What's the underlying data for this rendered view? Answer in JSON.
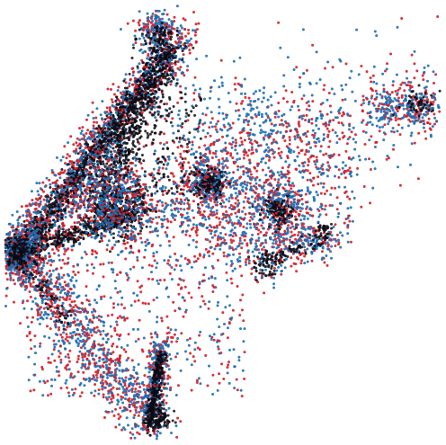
{
  "chart_data": {
    "type": "scatter",
    "title": "",
    "xlabel": "",
    "ylabel": "",
    "axes_visible": false,
    "grid": false,
    "legend": "none",
    "xlim": [
      0,
      1
    ],
    "ylim": [
      0,
      1
    ],
    "series": [
      {
        "color": "#1f6fb4",
        "seed": 11,
        "structures": [
          {
            "kind": "line",
            "from": [
              0.03,
              0.43
            ],
            "to": [
              0.4,
              0.93
            ],
            "n": 700,
            "spread": 0.025
          },
          {
            "kind": "line",
            "from": [
              0.03,
              0.43
            ],
            "to": [
              0.34,
              0.03
            ],
            "n": 450,
            "spread": 0.03
          },
          {
            "kind": "line",
            "from": [
              0.33,
              0.03
            ],
            "to": [
              0.36,
              0.22
            ],
            "n": 200,
            "spread": 0.012
          },
          {
            "kind": "line",
            "from": [
              0.2,
              0.51
            ],
            "to": [
              0.72,
              0.63
            ],
            "n": 350,
            "spread": 0.06
          },
          {
            "kind": "line",
            "from": [
              0.4,
              0.7
            ],
            "to": [
              0.97,
              0.78
            ],
            "n": 250,
            "spread": 0.08
          },
          {
            "kind": "line",
            "from": [
              0.5,
              0.45
            ],
            "to": [
              0.74,
              0.48
            ],
            "n": 120,
            "spread": 0.03
          },
          {
            "kind": "line",
            "from": [
              0.58,
              0.39
            ],
            "to": [
              0.75,
              0.47
            ],
            "n": 90,
            "spread": 0.02
          },
          {
            "kind": "blob",
            "center": [
              0.03,
              0.43
            ],
            "radius": 0.03,
            "n": 220
          },
          {
            "kind": "blob",
            "center": [
              0.63,
              0.54
            ],
            "radius": 0.028,
            "n": 120
          },
          {
            "kind": "blob",
            "center": [
              0.47,
              0.59
            ],
            "radius": 0.025,
            "n": 120
          },
          {
            "kind": "blob",
            "center": [
              0.95,
              0.77
            ],
            "radius": 0.03,
            "n": 100
          },
          {
            "kind": "blob",
            "center": [
              0.87,
              0.77
            ],
            "radius": 0.025,
            "n": 60
          },
          {
            "kind": "blob",
            "center": [
              0.58,
              0.76
            ],
            "radius": 0.025,
            "n": 40
          },
          {
            "kind": "blob",
            "center": [
              0.35,
              0.94
            ],
            "radius": 0.025,
            "n": 120
          },
          {
            "kind": "blob",
            "center": [
              0.25,
              0.56
            ],
            "radius": 0.05,
            "n": 250
          },
          {
            "kind": "region",
            "box": [
              0.05,
              0.1,
              0.55,
              0.55
            ],
            "n": 350
          },
          {
            "kind": "region",
            "box": [
              0.4,
              0.45,
              0.8,
              0.75
            ],
            "n": 220
          }
        ]
      },
      {
        "color": "#d0202a",
        "seed": 29,
        "structures": [
          {
            "kind": "line",
            "from": [
              0.03,
              0.43
            ],
            "to": [
              0.4,
              0.93
            ],
            "n": 650,
            "spread": 0.028
          },
          {
            "kind": "line",
            "from": [
              0.03,
              0.43
            ],
            "to": [
              0.34,
              0.03
            ],
            "n": 420,
            "spread": 0.035
          },
          {
            "kind": "line",
            "from": [
              0.33,
              0.03
            ],
            "to": [
              0.36,
              0.22
            ],
            "n": 180,
            "spread": 0.014
          },
          {
            "kind": "line",
            "from": [
              0.2,
              0.51
            ],
            "to": [
              0.72,
              0.63
            ],
            "n": 330,
            "spread": 0.065
          },
          {
            "kind": "line",
            "from": [
              0.4,
              0.7
            ],
            "to": [
              0.97,
              0.78
            ],
            "n": 230,
            "spread": 0.085
          },
          {
            "kind": "line",
            "from": [
              0.5,
              0.45
            ],
            "to": [
              0.74,
              0.48
            ],
            "n": 110,
            "spread": 0.03
          },
          {
            "kind": "line",
            "from": [
              0.58,
              0.39
            ],
            "to": [
              0.75,
              0.47
            ],
            "n": 80,
            "spread": 0.02
          },
          {
            "kind": "blob",
            "center": [
              0.03,
              0.43
            ],
            "radius": 0.032,
            "n": 200
          },
          {
            "kind": "blob",
            "center": [
              0.63,
              0.54
            ],
            "radius": 0.03,
            "n": 110
          },
          {
            "kind": "blob",
            "center": [
              0.47,
              0.59
            ],
            "radius": 0.027,
            "n": 110
          },
          {
            "kind": "blob",
            "center": [
              0.95,
              0.77
            ],
            "radius": 0.03,
            "n": 90
          },
          {
            "kind": "blob",
            "center": [
              0.87,
              0.77
            ],
            "radius": 0.025,
            "n": 50
          },
          {
            "kind": "blob",
            "center": [
              0.35,
              0.94
            ],
            "radius": 0.025,
            "n": 100
          },
          {
            "kind": "blob",
            "center": [
              0.25,
              0.56
            ],
            "radius": 0.05,
            "n": 230
          },
          {
            "kind": "region",
            "box": [
              0.05,
              0.1,
              0.55,
              0.55
            ],
            "n": 380
          },
          {
            "kind": "region",
            "box": [
              0.4,
              0.45,
              0.8,
              0.75
            ],
            "n": 240
          }
        ]
      },
      {
        "color": "#0a0a14",
        "seed": 47,
        "structures": [
          {
            "kind": "line",
            "from": [
              0.05,
              0.45
            ],
            "to": [
              0.39,
              0.91
            ],
            "n": 900,
            "spread": 0.014
          },
          {
            "kind": "line",
            "from": [
              0.2,
              0.52
            ],
            "to": [
              0.36,
              0.86
            ],
            "n": 500,
            "spread": 0.02
          },
          {
            "kind": "line",
            "from": [
              0.03,
              0.43
            ],
            "to": [
              0.3,
              0.52
            ],
            "n": 350,
            "spread": 0.012
          },
          {
            "kind": "line",
            "from": [
              0.33,
              0.03
            ],
            "to": [
              0.36,
              0.2
            ],
            "n": 260,
            "spread": 0.006
          },
          {
            "kind": "line",
            "from": [
              0.03,
              0.42
            ],
            "to": [
              0.15,
              0.27
            ],
            "n": 80,
            "spread": 0.01
          },
          {
            "kind": "line",
            "from": [
              0.58,
              0.4
            ],
            "to": [
              0.74,
              0.47
            ],
            "n": 60,
            "spread": 0.01
          },
          {
            "kind": "blob",
            "center": [
              0.03,
              0.43
            ],
            "radius": 0.02,
            "n": 260
          },
          {
            "kind": "blob",
            "center": [
              0.26,
              0.53
            ],
            "radius": 0.035,
            "n": 300
          },
          {
            "kind": "blob",
            "center": [
              0.47,
              0.59
            ],
            "radius": 0.018,
            "n": 140
          },
          {
            "kind": "blob",
            "center": [
              0.63,
              0.53
            ],
            "radius": 0.018,
            "n": 120
          },
          {
            "kind": "blob",
            "center": [
              0.35,
              0.05
            ],
            "radius": 0.015,
            "n": 90
          },
          {
            "kind": "blob",
            "center": [
              0.95,
              0.77
            ],
            "radius": 0.018,
            "n": 50
          },
          {
            "kind": "blob",
            "center": [
              0.35,
              0.92
            ],
            "radius": 0.02,
            "n": 90
          },
          {
            "kind": "blob",
            "center": [
              0.73,
              0.48
            ],
            "radius": 0.012,
            "n": 35
          },
          {
            "kind": "blob",
            "center": [
              0.6,
              0.4
            ],
            "radius": 0.015,
            "n": 45
          },
          {
            "kind": "region",
            "box": [
              0.25,
              0.55,
              0.45,
              0.8
            ],
            "n": 200
          }
        ]
      }
    ]
  }
}
